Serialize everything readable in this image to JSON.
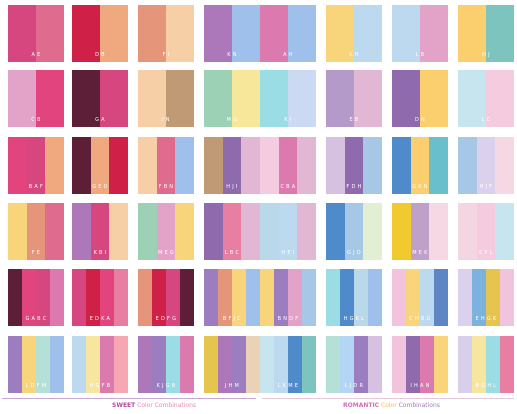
{
  "colors": {
    "A": "#d6477f",
    "B": "#f0a97e",
    "C": "#e2457e",
    "D": "#cf2148",
    "E": "#df6b8f",
    "F": "#e5967a",
    "G": "#5c1f37",
    "H": "#f4d4ba",
    "I": "#f6cfa7",
    "J": "#c09a74",
    "K": "#ad78b9",
    "L": "#9ec0ea",
    "M": "#9cd1b6",
    "N": "#f6e79a",
    "O": "#dc7aaf",
    "P": "#bcd9f0",
    "Q": "#e3a3c8",
    "R": "#f8d47a",
    "S": "#7cc4bd",
    "T": "#9adde4",
    "U": "#ccd9f3",
    "V": "#b39ac8",
    "W": "#e2b7d4",
    "X": "#8f6bae",
    "Y": "#fbcf6e",
    "Z": "#c6e5ee",
    "a": "#f5cbe0",
    "b": "#dcd1ec",
    "c": "#f3e3eb",
    "d": "#a7c7e7",
    "e": "#b9d8e9",
    "f": "#4f8bcb",
    "g": "#ebd2b7",
    "h": "#f3d6e2",
    "i": "#e87ea2",
    "j": "#5f86c4",
    "k": "#b4d6f4",
    "l": "#f0ca2f",
    "m": "#d0e3ef",
    "n": "#d7c1e3",
    "o": "#e3efd2",
    "p": "#f7a6b4",
    "q": "#9b2d55",
    "r": "#6abfcd",
    "s": "#7bb3de",
    "t": "#f6d8e4",
    "u": "#bea0c9",
    "v": "#f2c3dd",
    "w": "#b4e0d7",
    "x": "#e6c54f",
    "y": "#9b7dc0",
    "z": "#f7e6a0",
    "1": "#d8d0ea"
  },
  "rows": [
    [
      {
        "c": "AE",
        "l": "A E"
      },
      {
        "c": "DB",
        "l": "D B"
      },
      {
        "c": "FI",
        "l": "F I"
      },
      {
        "c": "KL",
        "l": "K N"
      },
      {
        "c": "OL",
        "l": "A H"
      },
      {
        "c": "RP",
        "l": "K H"
      },
      {
        "c": "PQ",
        "l": "L B"
      },
      {
        "c": "YS",
        "l": "H J"
      }
    ],
    [
      {
        "c": "QC",
        "l": "C B"
      },
      {
        "c": "GA",
        "l": "G A"
      },
      {
        "c": "IJ",
        "l": "I N"
      },
      {
        "c": "MN",
        "l": "M G"
      },
      {
        "c": "TU",
        "l": "K I"
      },
      {
        "c": "VW",
        "l": "E B"
      },
      {
        "c": "XY",
        "l": "D N"
      },
      {
        "c": "Za",
        "l": "L C"
      }
    ],
    [
      {
        "c": "CAB",
        "l": "B A F"
      },
      {
        "c": "GBD",
        "l": "G E D"
      },
      {
        "c": "IEL",
        "l": "F B N"
      },
      {
        "c": "JXW",
        "l": "H J I"
      },
      {
        "c": "aOW",
        "l": "C B A"
      },
      {
        "c": "nXd",
        "l": "F D H"
      },
      {
        "c": "fYr",
        "l": "G K N"
      },
      {
        "c": "dbt",
        "l": "H J F"
      }
    ],
    [
      {
        "c": "RFE",
        "l": "F E"
      },
      {
        "c": "KAI",
        "l": "K B I"
      },
      {
        "c": "MQR",
        "l": "M E G"
      },
      {
        "c": "XiW",
        "l": "L B C"
      },
      {
        "c": "ePW",
        "l": "H E I"
      },
      {
        "c": "fdo",
        "l": "G J D"
      },
      {
        "c": "lut",
        "l": "M E K"
      },
      {
        "c": "haZ",
        "l": "C F L"
      }
    ],
    [
      {
        "c": "GCAO",
        "l": "G A B C"
      },
      {
        "c": "ADCi",
        "l": "E D K A"
      },
      {
        "c": "FDAG",
        "l": "E D F G"
      },
      {
        "c": "yFRL",
        "l": "B F J C"
      },
      {
        "c": "RyQd",
        "l": "B N D F"
      },
      {
        "c": "TfeL",
        "l": "H G K L"
      },
      {
        "c": "vRPj",
        "l": "C H B G"
      },
      {
        "c": "bsxv",
        "l": "E H G K"
      }
    ],
    [
      {
        "c": "yRwL",
        "l": "L D F M"
      },
      {
        "c": "PzOp",
        "l": "H G F B"
      },
      {
        "c": "KyTO",
        "l": "K J G B"
      },
      {
        "c": "xKyg",
        "l": "J H M"
      },
      {
        "c": "ZPfS",
        "l": "L K M E"
      },
      {
        "c": "wkyn",
        "l": "L J D R"
      },
      {
        "c": "vXOR",
        "l": "I H A N"
      },
      {
        "c": "1zTi",
        "l": "B G H L"
      }
    ]
  ],
  "footer": {
    "sweet": {
      "kw": "SWEET",
      "rest": "Color Combinations",
      "kw_color": "#b24aa0",
      "rest_color": "#e48ab5",
      "line": "#c8a8d4"
    },
    "romantic": {
      "kw": "ROMANTIC",
      "rest": "Color",
      "tail": "Combinations",
      "kw_color": "#d86fb0",
      "rest_color": "#e8c35a",
      "tail_color": "#9c7cc2",
      "line": "#e5c8dc"
    }
  }
}
